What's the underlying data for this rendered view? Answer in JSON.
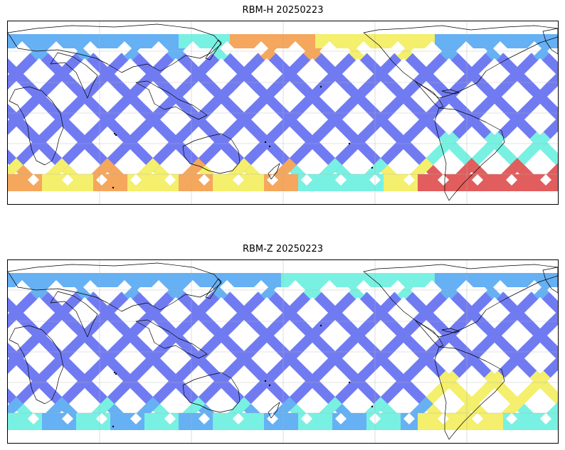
{
  "panels": [
    {
      "id": "top",
      "title": "RBM-H 20250223",
      "date": "20250223",
      "product": "RBM-H"
    },
    {
      "id": "bottom",
      "title": "RBM-Z 20250223",
      "date": "20250223",
      "product": "RBM-Z"
    }
  ],
  "map": {
    "projection": "plate-carree",
    "central_longitude": "dateline-centered (Africa left, Americas right)",
    "gridlines": true,
    "coastlines": true,
    "colormap": "jet (transparent overlay)",
    "swath_pattern": "diagonal crossing orbital tracks",
    "colors": {
      "low": "#6670f0",
      "mid_low": "#5aaaf4",
      "mid": "#6ef0e0",
      "mid_high": "#f4ee60",
      "high": "#f4a050",
      "max": "#e05050"
    }
  }
}
